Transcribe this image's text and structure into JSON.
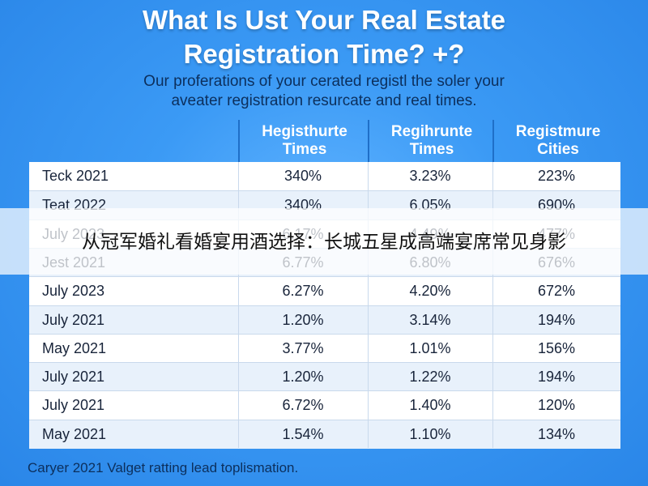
{
  "header": {
    "title_line1": "What Is Ust Your Real Estate",
    "title_line2": "Registration Time? +?",
    "subtitle_line1": "Our proferations of your cerated registl the soler your",
    "subtitle_line2": "aveater registration resurcate and real times."
  },
  "chart_data": {
    "type": "table",
    "columns": [
      "",
      "Hegisthurte\nTimes",
      "Regihrunte\nTimes",
      "Registmure\nCities"
    ],
    "rows": [
      [
        "Teck 2021",
        "340%",
        "3.23%",
        "223%"
      ],
      [
        "Teat 2022",
        "340%",
        "6.05%",
        "690%"
      ],
      [
        "July 2023",
        "6.17%",
        "4.49%",
        "477%"
      ],
      [
        "Jest 2021",
        "6.77%",
        "6.80%",
        "676%"
      ],
      [
        "July 2023",
        "6.27%",
        "4.20%",
        "672%"
      ],
      [
        "July 2021",
        "1.20%",
        "3.14%",
        "194%"
      ],
      [
        "May 2021",
        "3.77%",
        "1.01%",
        "156%"
      ],
      [
        "July 2021",
        "1.20%",
        "1.22%",
        "194%"
      ],
      [
        "July 2021",
        "6.72%",
        "1.40%",
        "120%"
      ],
      [
        "May 2021",
        "1.54%",
        "1.10%",
        "134%"
      ]
    ]
  },
  "overlay": {
    "banner_text": "从冠军婚礼看婚宴用酒选择：长城五星成高端宴席常见身影"
  },
  "footer": {
    "text": "Caryer 2021 Valget ratting lead toplismation."
  },
  "colors": {
    "background": "#2f8ff0",
    "header_text": "#ffffff",
    "body_text": "#18243a",
    "row_alt": "#e8f1fb"
  }
}
